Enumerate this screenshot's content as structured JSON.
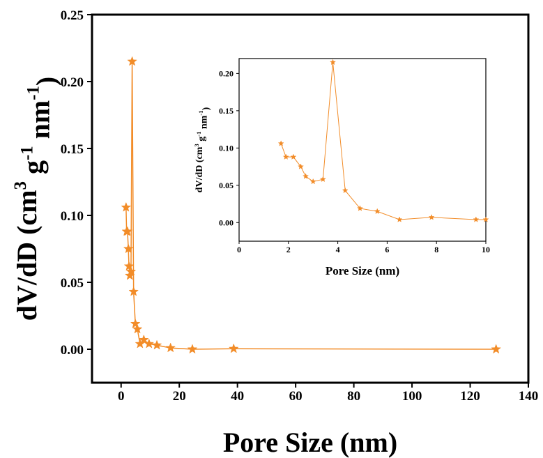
{
  "chart_data": [
    {
      "type": "line",
      "xlabel": "Pore Size (nm)",
      "ylabel_parts": {
        "base": "dV/dD (cm",
        "sup1": "3",
        "mid1": " g",
        "sup2": "-1",
        "mid2": " nm",
        "sup3": "-1",
        "end": ")"
      },
      "xlim": [
        -10,
        140
      ],
      "ylim": [
        -0.025,
        0.25
      ],
      "xticks": [
        0,
        20,
        40,
        60,
        80,
        100,
        120,
        140
      ],
      "yticks": [
        0.0,
        0.05,
        0.1,
        0.15,
        0.2,
        0.25
      ],
      "xtick_labels": [
        "0",
        "20",
        "40",
        "60",
        "80",
        "100",
        "120",
        "140"
      ],
      "ytick_labels": [
        "0.00",
        "0.05",
        "0.10",
        "0.15",
        "0.20",
        "0.25"
      ],
      "marker": "star",
      "color": "#F28C28",
      "series": [
        {
          "x": [
            1.7,
            1.9,
            2.2,
            2.5,
            2.7,
            3.0,
            3.4,
            3.8,
            4.3,
            4.9,
            5.6,
            6.5,
            7.8,
            9.6,
            12.3,
            17.0,
            24.5,
            38.7,
            128.9
          ],
          "y": [
            0.106,
            0.088,
            0.088,
            0.075,
            0.062,
            0.055,
            0.058,
            0.215,
            0.043,
            0.019,
            0.015,
            0.004,
            0.007,
            0.004,
            0.003,
            0.001,
            0.0,
            0.0004,
            0.0
          ]
        }
      ]
    },
    {
      "type": "line",
      "xlabel": "Pore Size (nm)",
      "ylabel_parts": {
        "base": "dV/dD (cm",
        "sup1": "3",
        "mid1": " g",
        "sup2": "-1",
        "mid2": " nm",
        "sup3": "-1",
        "end": ")"
      },
      "xlim": [
        0,
        10
      ],
      "ylim": [
        -0.025,
        0.22
      ],
      "xticks": [
        0,
        2,
        4,
        6,
        8,
        10
      ],
      "yticks": [
        0.0,
        0.05,
        0.1,
        0.15,
        0.2
      ],
      "xtick_labels": [
        "0",
        "2",
        "4",
        "6",
        "8",
        "10"
      ],
      "ytick_labels": [
        "0.00",
        "0.05",
        "0.10",
        "0.15",
        "0.20"
      ],
      "marker": "star",
      "color": "#F28C28",
      "series": [
        {
          "x": [
            1.7,
            1.9,
            2.2,
            2.5,
            2.7,
            3.0,
            3.4,
            3.8,
            4.3,
            4.9,
            5.6,
            6.5,
            7.8,
            9.6,
            10.0
          ],
          "y": [
            0.106,
            0.088,
            0.088,
            0.075,
            0.062,
            0.055,
            0.058,
            0.215,
            0.043,
            0.019,
            0.015,
            0.004,
            0.007,
            0.004,
            0.004
          ]
        }
      ]
    }
  ]
}
